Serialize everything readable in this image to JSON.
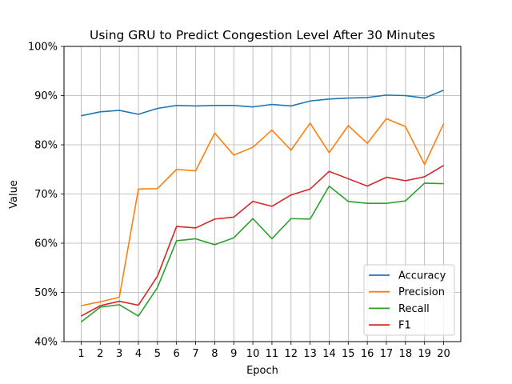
{
  "chart_data": {
    "type": "line",
    "title": "Using GRU to Predict Congestion Level After 30 Minutes",
    "xlabel": "Epoch",
    "ylabel": "Value",
    "x": [
      1,
      2,
      3,
      4,
      5,
      6,
      7,
      8,
      9,
      10,
      11,
      12,
      13,
      14,
      15,
      16,
      17,
      18,
      19,
      20
    ],
    "xticks": [
      "1",
      "2",
      "3",
      "4",
      "5",
      "6",
      "7",
      "8",
      "9",
      "10",
      "11",
      "12",
      "13",
      "14",
      "15",
      "16",
      "17",
      "18",
      "19",
      "20"
    ],
    "ylim": [
      0.4,
      1.0
    ],
    "yticks": [
      0.4,
      0.5,
      0.6,
      0.7,
      0.8,
      0.9,
      1.0
    ],
    "ytick_labels": [
      "40%",
      "50%",
      "60%",
      "70%",
      "80%",
      "90%",
      "100%"
    ],
    "grid": true,
    "legend_position": "lower-right",
    "series": [
      {
        "name": "Accuracy",
        "color": "#1f77b4",
        "values": [
          0.859,
          0.867,
          0.87,
          0.862,
          0.874,
          0.88,
          0.879,
          0.88,
          0.88,
          0.877,
          0.882,
          0.879,
          0.889,
          0.893,
          0.895,
          0.896,
          0.901,
          0.9,
          0.895,
          0.911
        ]
      },
      {
        "name": "Precision",
        "color": "#ff7f0e",
        "values": [
          0.473,
          0.481,
          0.49,
          0.71,
          0.711,
          0.75,
          0.747,
          0.824,
          0.779,
          0.795,
          0.83,
          0.789,
          0.844,
          0.784,
          0.839,
          0.803,
          0.853,
          0.837,
          0.76,
          0.843
        ]
      },
      {
        "name": "Recall",
        "color": "#2ca02c",
        "values": [
          0.44,
          0.47,
          0.475,
          0.452,
          0.51,
          0.605,
          0.609,
          0.597,
          0.611,
          0.65,
          0.609,
          0.65,
          0.649,
          0.716,
          0.685,
          0.681,
          0.681,
          0.686,
          0.722,
          0.721
        ]
      },
      {
        "name": "F1",
        "color": "#d62728",
        "values": [
          0.452,
          0.473,
          0.482,
          0.474,
          0.533,
          0.634,
          0.631,
          0.649,
          0.653,
          0.685,
          0.675,
          0.698,
          0.71,
          0.746,
          0.731,
          0.716,
          0.734,
          0.727,
          0.735,
          0.758
        ]
      }
    ]
  }
}
